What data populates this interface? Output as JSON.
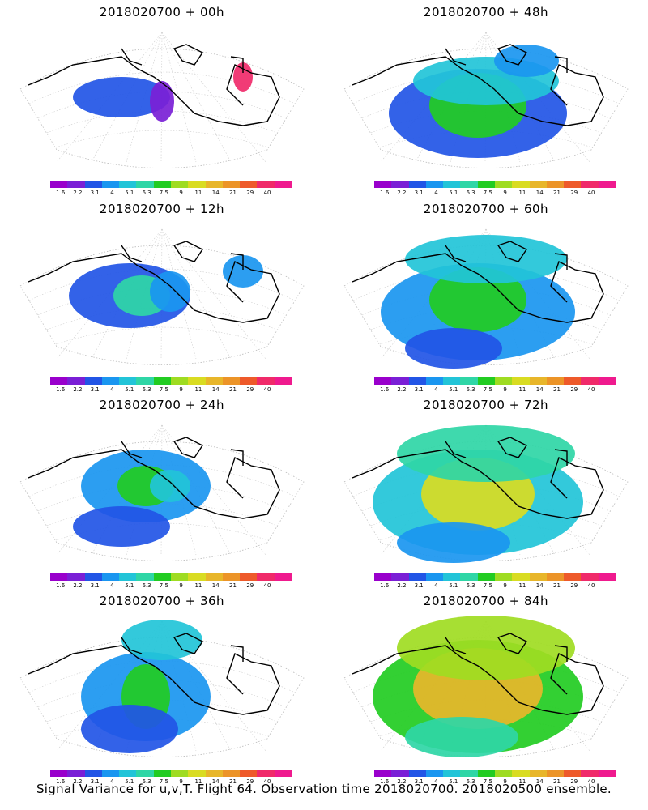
{
  "footer_caption": "Signal Variance for u,v,T. Flight 64. Observation time 2018020700. 2018020500 ensemble.",
  "colorbar": {
    "labels": [
      "1.6",
      "2.2",
      "3.1",
      "4",
      "5.1",
      "6.3",
      "7.5",
      "9",
      "11",
      "14",
      "21",
      "29",
      "40"
    ],
    "colors": [
      "#9900cc",
      "#7a1fd6",
      "#2255e6",
      "#1a96f0",
      "#22c4d8",
      "#2fd6a6",
      "#22cc22",
      "#9fdc22",
      "#d9dc22",
      "#e8b62a",
      "#ec9428",
      "#ee5a2a",
      "#f02a6a",
      "#ef1a8e"
    ]
  },
  "chart_data": [
    {
      "type": "heatmap",
      "title": "2018020700 + 00h",
      "colorbar_ticks": [
        1.6,
        2.2,
        3.1,
        4,
        5.1,
        6.3,
        7.5,
        9,
        11,
        14,
        21,
        29,
        40
      ]
    },
    {
      "type": "heatmap",
      "title": "2018020700 + 48h",
      "colorbar_ticks": [
        1.6,
        2.2,
        3.1,
        4,
        5.1,
        6.3,
        7.5,
        9,
        11,
        14,
        21,
        29,
        40
      ]
    },
    {
      "type": "heatmap",
      "title": "2018020700 + 12h",
      "colorbar_ticks": [
        1.6,
        2.2,
        3.1,
        4,
        5.1,
        6.3,
        7.5,
        9,
        11,
        14,
        21,
        29,
        40
      ]
    },
    {
      "type": "heatmap",
      "title": "2018020700 + 60h",
      "colorbar_ticks": [
        1.6,
        2.2,
        3.1,
        4,
        5.1,
        6.3,
        7.5,
        9,
        11,
        14,
        21,
        29,
        40
      ]
    },
    {
      "type": "heatmap",
      "title": "2018020700 + 24h",
      "colorbar_ticks": [
        1.6,
        2.2,
        3.1,
        4,
        5.1,
        6.3,
        7.5,
        9,
        11,
        14,
        21,
        29,
        40
      ]
    },
    {
      "type": "heatmap",
      "title": "2018020700 + 72h",
      "colorbar_ticks": [
        1.6,
        2.2,
        3.1,
        4,
        5.1,
        6.3,
        7.5,
        9,
        11,
        14,
        21,
        29,
        40
      ]
    },
    {
      "type": "heatmap",
      "title": "2018020700 + 36h",
      "colorbar_ticks": [
        1.6,
        2.2,
        3.1,
        4,
        5.1,
        6.3,
        7.5,
        9,
        11,
        14,
        21,
        29,
        40
      ]
    },
    {
      "type": "heatmap",
      "title": "2018020700 + 84h",
      "colorbar_ticks": [
        1.6,
        2.2,
        3.1,
        4,
        5.1,
        6.3,
        7.5,
        9,
        11,
        14,
        21,
        29,
        40
      ]
    }
  ]
}
